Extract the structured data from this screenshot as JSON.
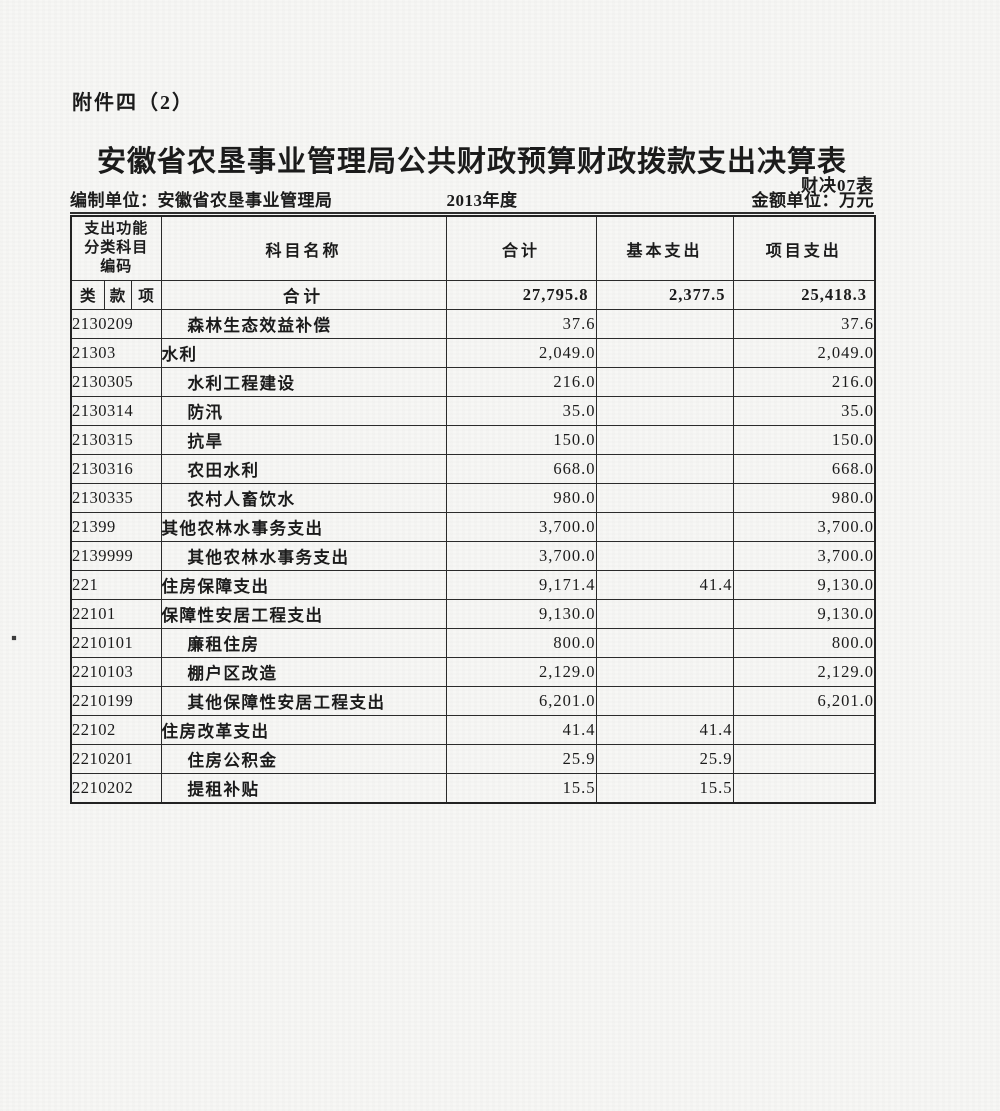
{
  "page": {
    "attachment_label": "附件四（2）",
    "title": "安徽省农垦事业管理局公共财政预算财政拨款支出决算表",
    "form_code": "财决07表",
    "meta": {
      "prepared_by_label": "编制单位：",
      "prepared_by": "安徽省农垦事业管理局",
      "year": "2013年度",
      "unit_label": "金额单位：万元"
    }
  },
  "table": {
    "header": {
      "code_col_lines": [
        "支出功能",
        "分类科目",
        "编码"
      ],
      "sub_code": [
        "类",
        "款",
        "项"
      ],
      "name_col": "科目名称",
      "total_col": "合计",
      "basic_col": "基本支出",
      "project_col": "项目支出"
    },
    "total_row": {
      "name": "合计",
      "total": "27,795.8",
      "basic": "2,377.5",
      "project": "25,418.3"
    },
    "rows": [
      {
        "code": "2130209",
        "name": "森林生态效益补偿",
        "indent": true,
        "total": "37.6",
        "basic": "",
        "project": "37.6"
      },
      {
        "code": "21303",
        "name": "水利",
        "indent": false,
        "total": "2,049.0",
        "basic": "",
        "project": "2,049.0"
      },
      {
        "code": "2130305",
        "name": "水利工程建设",
        "indent": true,
        "total": "216.0",
        "basic": "",
        "project": "216.0"
      },
      {
        "code": "2130314",
        "name": "防汛",
        "indent": true,
        "total": "35.0",
        "basic": "",
        "project": "35.0"
      },
      {
        "code": "2130315",
        "name": "抗旱",
        "indent": true,
        "total": "150.0",
        "basic": "",
        "project": "150.0"
      },
      {
        "code": "2130316",
        "name": "农田水利",
        "indent": true,
        "total": "668.0",
        "basic": "",
        "project": "668.0"
      },
      {
        "code": "2130335",
        "name": "农村人畜饮水",
        "indent": true,
        "total": "980.0",
        "basic": "",
        "project": "980.0"
      },
      {
        "code": "21399",
        "name": "其他农林水事务支出",
        "indent": false,
        "total": "3,700.0",
        "basic": "",
        "project": "3,700.0"
      },
      {
        "code": "2139999",
        "name": "其他农林水事务支出",
        "indent": true,
        "total": "3,700.0",
        "basic": "",
        "project": "3,700.0"
      },
      {
        "code": "221",
        "name": "住房保障支出",
        "indent": false,
        "total": "9,171.4",
        "basic": "41.4",
        "project": "9,130.0"
      },
      {
        "code": "22101",
        "name": "保障性安居工程支出",
        "indent": false,
        "total": "9,130.0",
        "basic": "",
        "project": "9,130.0"
      },
      {
        "code": "2210101",
        "name": "廉租住房",
        "indent": true,
        "total": "800.0",
        "basic": "",
        "project": "800.0"
      },
      {
        "code": "2210103",
        "name": "棚户区改造",
        "indent": true,
        "total": "2,129.0",
        "basic": "",
        "project": "2,129.0"
      },
      {
        "code": "2210199",
        "name": "其他保障性安居工程支出",
        "indent": true,
        "total": "6,201.0",
        "basic": "",
        "project": "6,201.0"
      },
      {
        "code": "22102",
        "name": "住房改革支出",
        "indent": false,
        "total": "41.4",
        "basic": "41.4",
        "project": ""
      },
      {
        "code": "2210201",
        "name": "住房公积金",
        "indent": true,
        "total": "25.9",
        "basic": "25.9",
        "project": ""
      },
      {
        "code": "2210202",
        "name": "提租补贴",
        "indent": true,
        "total": "15.5",
        "basic": "15.5",
        "project": ""
      }
    ]
  }
}
